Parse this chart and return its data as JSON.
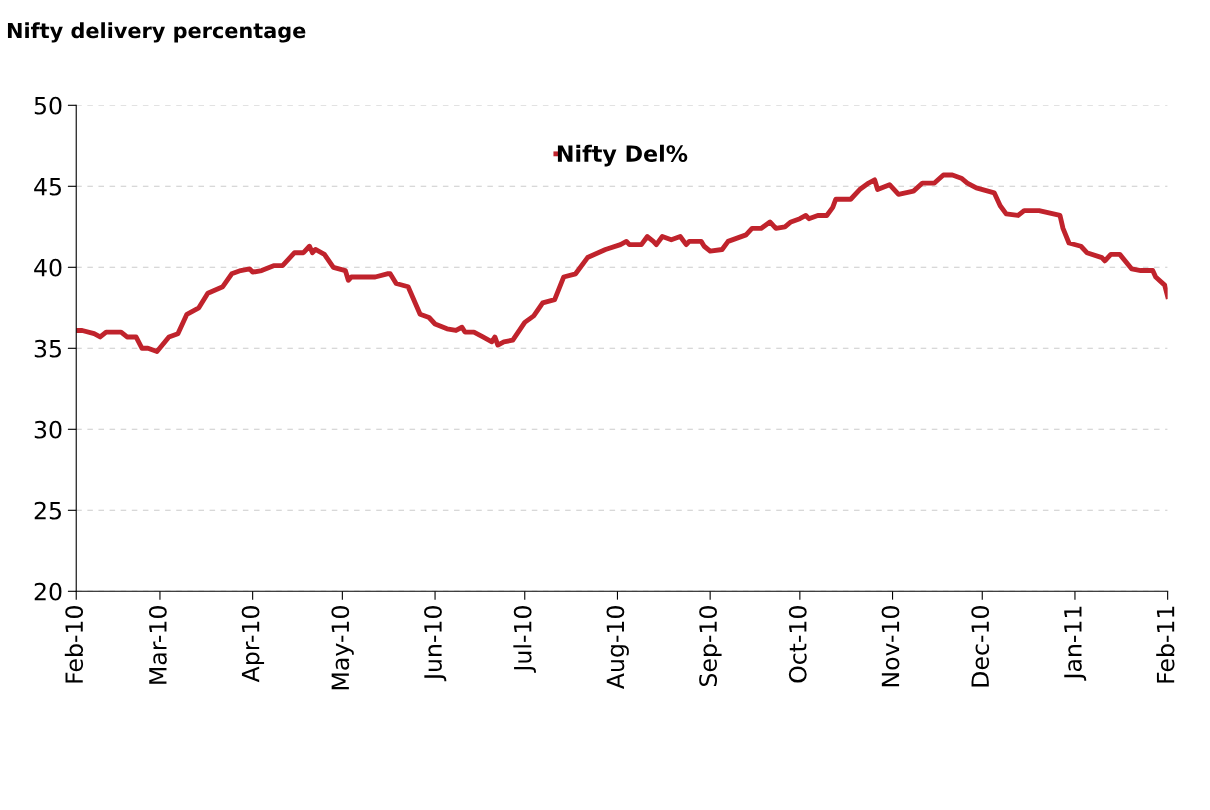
{
  "chart_data": {
    "type": "line",
    "title": "Nifty delivery percentage",
    "x": [
      "2010-02-01",
      "2010-02-03",
      "2010-02-07",
      "2010-02-09",
      "2010-02-11",
      "2010-02-16",
      "2010-02-18",
      "2010-02-21",
      "2010-02-23",
      "2010-02-25",
      "2010-02-28",
      "2010-03-04",
      "2010-03-07",
      "2010-03-10",
      "2010-03-14",
      "2010-03-17",
      "2010-03-22",
      "2010-03-25",
      "2010-03-28",
      "2010-03-31",
      "2010-04-01",
      "2010-04-04",
      "2010-04-08",
      "2010-04-11",
      "2010-04-15",
      "2010-04-18",
      "2010-04-20",
      "2010-04-21",
      "2010-04-22",
      "2010-04-25",
      "2010-04-28",
      "2010-05-02",
      "2010-05-03",
      "2010-05-04",
      "2010-05-12",
      "2010-05-16",
      "2010-05-17",
      "2010-05-19",
      "2010-05-23",
      "2010-05-27",
      "2010-05-30",
      "2010-06-01",
      "2010-06-05",
      "2010-06-08",
      "2010-06-10",
      "2010-06-11",
      "2010-06-14",
      "2010-06-17",
      "2010-06-20",
      "2010-06-21",
      "2010-06-22",
      "2010-06-24",
      "2010-06-27",
      "2010-07-01",
      "2010-07-04",
      "2010-07-07",
      "2010-07-11",
      "2010-07-14",
      "2010-07-18",
      "2010-07-22",
      "2010-07-28",
      "2010-08-02",
      "2010-08-04",
      "2010-08-05",
      "2010-08-09",
      "2010-08-11",
      "2010-08-13",
      "2010-08-14",
      "2010-08-16",
      "2010-08-19",
      "2010-08-22",
      "2010-08-24",
      "2010-08-25",
      "2010-08-29",
      "2010-08-30",
      "2010-09-01",
      "2010-09-05",
      "2010-09-07",
      "2010-09-10",
      "2010-09-13",
      "2010-09-15",
      "2010-09-18",
      "2010-09-21",
      "2010-09-23",
      "2010-09-26",
      "2010-09-28",
      "2010-10-01",
      "2010-10-03",
      "2010-10-04",
      "2010-10-07",
      "2010-10-10",
      "2010-10-12",
      "2010-10-13",
      "2010-10-18",
      "2010-10-21",
      "2010-10-24",
      "2010-10-26",
      "2010-10-27",
      "2010-10-31",
      "2010-11-03",
      "2010-11-08",
      "2010-11-11",
      "2010-11-15",
      "2010-11-18",
      "2010-11-21",
      "2010-11-24",
      "2010-11-26",
      "2010-11-29",
      "2010-12-05",
      "2010-12-07",
      "2010-12-09",
      "2010-12-13",
      "2010-12-15",
      "2010-12-20",
      "2010-12-27",
      "2010-12-28",
      "2010-12-30",
      "2011-01-03",
      "2011-01-05",
      "2011-01-10",
      "2011-01-11",
      "2011-01-13",
      "2011-01-16",
      "2011-01-20",
      "2011-01-23",
      "2011-01-27",
      "2011-01-28",
      "2011-01-31",
      "2011-02-01"
    ],
    "series": [
      {
        "name": "Nifty Del%",
        "color": "#c0232c",
        "values": [
          36.1,
          36.1,
          35.9,
          35.7,
          36.0,
          36.0,
          35.7,
          35.7,
          35.0,
          35.0,
          34.8,
          35.7,
          35.9,
          37.1,
          37.5,
          38.4,
          38.8,
          39.6,
          39.8,
          39.9,
          39.7,
          39.8,
          40.1,
          40.1,
          40.9,
          40.9,
          41.3,
          40.9,
          41.1,
          40.8,
          40.0,
          39.8,
          39.2,
          39.4,
          39.4,
          39.6,
          39.6,
          39.0,
          38.8,
          37.1,
          36.9,
          36.5,
          36.2,
          36.1,
          36.3,
          36.0,
          36.0,
          35.7,
          35.4,
          35.7,
          35.2,
          35.4,
          35.5,
          36.6,
          37.0,
          37.8,
          38.0,
          39.4,
          39.6,
          40.6,
          41.1,
          41.4,
          41.6,
          41.4,
          41.4,
          41.9,
          41.6,
          41.4,
          41.9,
          41.7,
          41.9,
          41.4,
          41.6,
          41.6,
          41.3,
          41.0,
          41.1,
          41.6,
          41.8,
          42.0,
          42.4,
          42.4,
          42.8,
          42.4,
          42.5,
          42.8,
          43.0,
          43.2,
          43.0,
          43.2,
          43.2,
          43.7,
          44.2,
          44.2,
          44.8,
          45.2,
          45.4,
          44.8,
          45.1,
          44.5,
          44.7,
          45.2,
          45.2,
          45.7,
          45.7,
          45.5,
          45.2,
          44.9,
          44.6,
          43.8,
          43.3,
          43.2,
          43.5,
          43.5,
          43.2,
          42.4,
          41.5,
          41.3,
          40.9,
          40.6,
          40.4,
          40.8,
          40.8,
          39.9,
          39.8,
          39.8,
          39.4,
          38.9,
          38.2
        ]
      }
    ],
    "xlim": [
      "2010-02-01",
      "2011-02-01"
    ],
    "xticks": [
      {
        "value": "2010-02-01",
        "label": "Feb-10"
      },
      {
        "value": "2010-03-01",
        "label": "Mar-10"
      },
      {
        "value": "2010-04-01",
        "label": "Apr-10"
      },
      {
        "value": "2010-05-01",
        "label": "May-10"
      },
      {
        "value": "2010-06-01",
        "label": "Jun-10"
      },
      {
        "value": "2010-07-01",
        "label": "Jul-10"
      },
      {
        "value": "2010-08-01",
        "label": "Aug-10"
      },
      {
        "value": "2010-09-01",
        "label": "Sep-10"
      },
      {
        "value": "2010-10-01",
        "label": "Oct-10"
      },
      {
        "value": "2010-11-01",
        "label": "Nov-10"
      },
      {
        "value": "2010-12-01",
        "label": "Dec-10"
      },
      {
        "value": "2011-01-01",
        "label": "Jan-11"
      },
      {
        "value": "2011-02-01",
        "label": "Feb-11"
      }
    ],
    "ylim": [
      20,
      50
    ],
    "yticks": [
      20,
      25,
      30,
      35,
      40,
      45,
      50
    ],
    "grid": "y",
    "legend": "top",
    "marker": "none",
    "line_style": "solid"
  }
}
